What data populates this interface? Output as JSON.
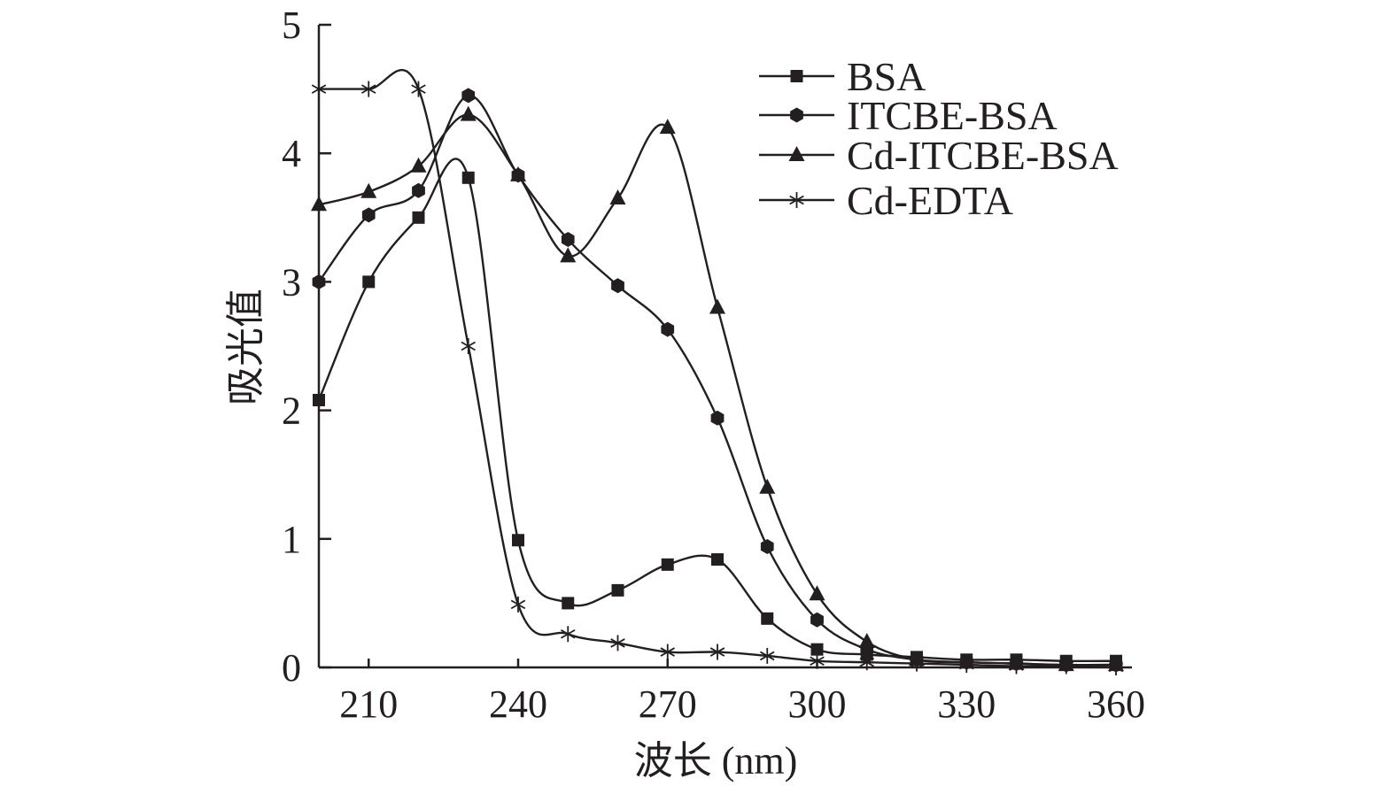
{
  "chart_data": {
    "type": "line",
    "xlabel": "波长 (nm)",
    "ylabel": "吸光值",
    "xlim": [
      200,
      360
    ],
    "ylim": [
      0,
      5
    ],
    "x_ticks": [
      210,
      240,
      270,
      300,
      330,
      360
    ],
    "y_ticks": [
      0,
      1,
      2,
      3,
      4,
      5
    ],
    "grid": false,
    "legend_position": "top-right",
    "series": [
      {
        "name": "BSA",
        "marker": "square",
        "x": [
          200,
          210,
          220,
          230,
          240,
          250,
          260,
          270,
          280,
          290,
          300,
          310,
          320,
          330,
          340,
          350,
          360
        ],
        "y": [
          2.08,
          3.0,
          3.5,
          3.81,
          0.99,
          0.5,
          0.6,
          0.8,
          0.84,
          0.38,
          0.14,
          0.1,
          0.08,
          0.06,
          0.06,
          0.05,
          0.05
        ]
      },
      {
        "name": "ITCBE-BSA",
        "marker": "hexagon",
        "x": [
          200,
          210,
          220,
          230,
          240,
          250,
          260,
          270,
          280,
          290,
          300,
          310,
          320,
          330,
          340,
          350,
          360
        ],
        "y": [
          3.0,
          3.52,
          3.71,
          4.45,
          3.83,
          3.33,
          2.97,
          2.63,
          1.94,
          0.94,
          0.37,
          0.14,
          0.06,
          0.04,
          0.03,
          0.02,
          0.02
        ]
      },
      {
        "name": "Cd-ITCBE-BSA",
        "marker": "triangle",
        "x": [
          200,
          210,
          220,
          230,
          240,
          250,
          260,
          270,
          280,
          290,
          300,
          310,
          320,
          330,
          340,
          350,
          360
        ],
        "y": [
          3.6,
          3.7,
          3.9,
          4.3,
          3.83,
          3.2,
          3.65,
          4.2,
          2.8,
          1.4,
          0.57,
          0.2,
          0.06,
          0.04,
          0.03,
          0.02,
          0.02
        ]
      },
      {
        "name": "Cd-EDTA",
        "marker": "asterisk",
        "x": [
          200,
          210,
          220,
          230,
          240,
          250,
          260,
          270,
          280,
          290,
          300,
          310,
          320,
          330,
          340,
          350,
          360
        ],
        "y": [
          4.5,
          4.5,
          4.5,
          2.5,
          0.49,
          0.26,
          0.19,
          0.12,
          0.12,
          0.09,
          0.05,
          0.04,
          0.03,
          0.02,
          0.01,
          0.01,
          0.0
        ]
      }
    ]
  }
}
